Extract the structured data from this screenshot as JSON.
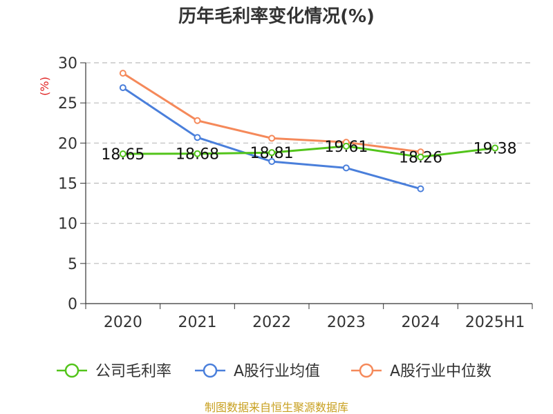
{
  "chart_data": {
    "type": "line",
    "title": "历年毛利率变化情况(%)",
    "ylabel": "(%)",
    "xlabel": "",
    "categories": [
      "2020",
      "2021",
      "2022",
      "2023",
      "2024",
      "2025H1"
    ],
    "ylim": [
      0,
      30
    ],
    "yticks": [
      "0",
      "5",
      "10",
      "15",
      "20",
      "25",
      "30"
    ],
    "grid": true,
    "legend_position": "bottom",
    "series": [
      {
        "name": "公司毛利率",
        "color": "#52c41a",
        "values": [
          18.65,
          18.68,
          18.81,
          19.61,
          18.26,
          19.38
        ],
        "labels": [
          "18.65",
          "18.68",
          "18.81",
          "19.61",
          "18.26",
          "19.38"
        ]
      },
      {
        "name": "A股行业均值",
        "color": "#4a7fdb",
        "values": [
          26.9,
          20.7,
          17.7,
          16.9,
          14.3,
          null
        ]
      },
      {
        "name": "A股行业中位数",
        "color": "#f5895a",
        "values": [
          28.7,
          22.8,
          20.6,
          20.1,
          18.9,
          null
        ]
      }
    ],
    "source": "制图数据来自恒生聚源数据库"
  }
}
